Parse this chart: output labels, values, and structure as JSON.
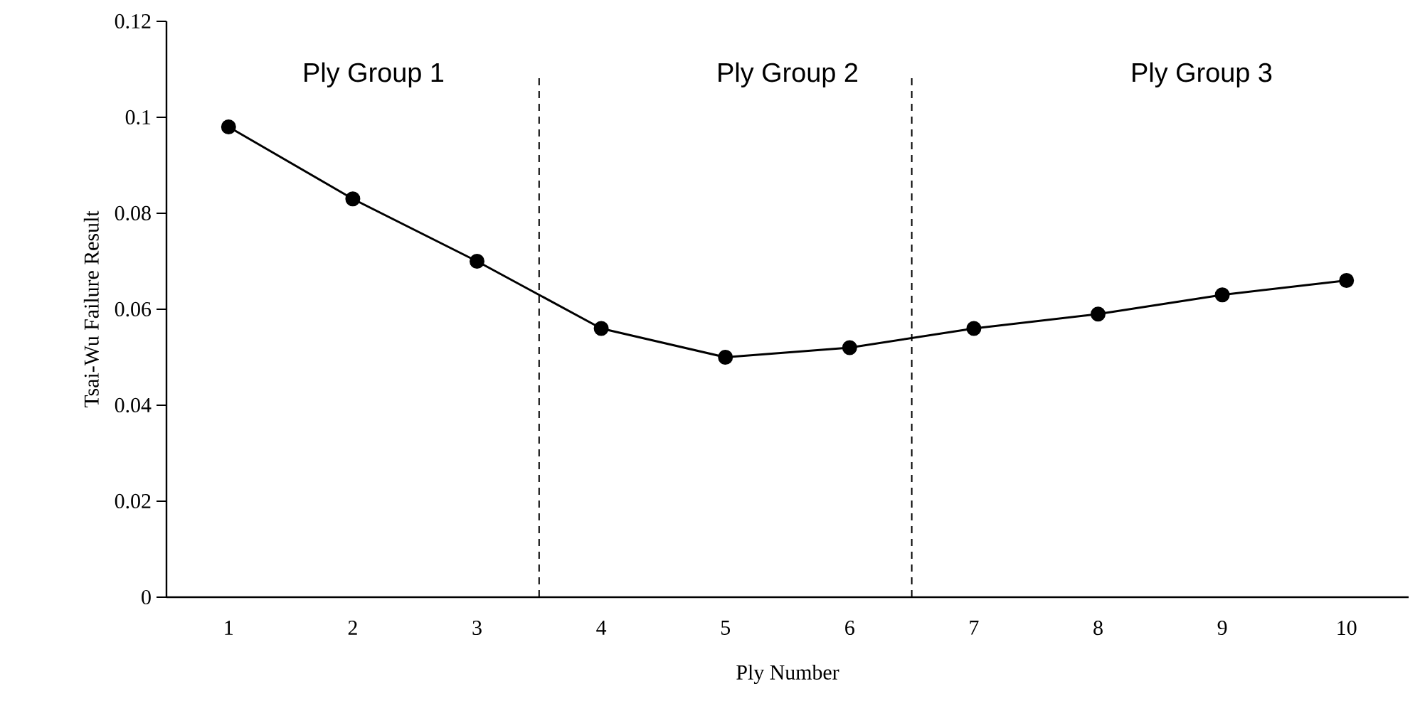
{
  "chart_data": {
    "type": "line",
    "xlabel": "Ply Number",
    "ylabel": "Tsai-Wu Failure Result",
    "x": [
      1,
      2,
      3,
      4,
      5,
      6,
      7,
      8,
      9,
      10
    ],
    "series": [
      {
        "color": "#000000",
        "values": [
          0.098,
          0.083,
          0.07,
          0.056,
          0.05,
          0.052,
          0.056,
          0.059,
          0.063,
          0.066
        ]
      }
    ],
    "xlim": [
      0.5,
      10.5
    ],
    "xticks": [
      1,
      2,
      3,
      4,
      5,
      6,
      7,
      8,
      9,
      10
    ],
    "ylim": [
      0,
      0.12
    ],
    "yticks": [
      0,
      0.02,
      0.04,
      0.06,
      0.08,
      {
        "value": 0.1,
        "label": "0.1"
      },
      0.12
    ],
    "ref_lines": [
      {
        "axis": "x",
        "value": 3.5,
        "line_style": "dashed",
        "color": "#000000"
      },
      {
        "axis": "x",
        "value": 6.5,
        "line_style": "dashed",
        "color": "#000000"
      }
    ],
    "annotations": [
      "Ply Group 1",
      "Ply Group 2",
      "Ply Group 3"
    ],
    "marker": "circle",
    "line_style": "solid"
  }
}
